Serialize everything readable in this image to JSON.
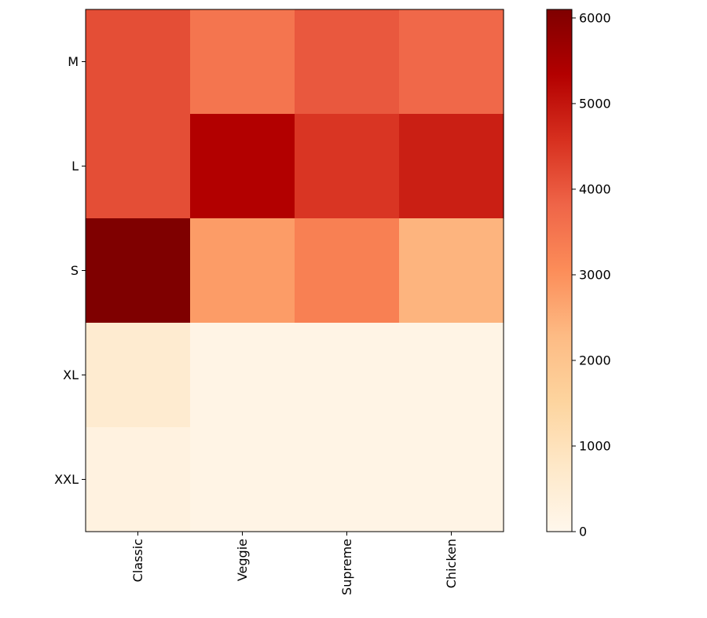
{
  "chart_data": {
    "type": "heatmap",
    "title": "",
    "xlabel": "",
    "ylabel": "",
    "x_categories": [
      "Classic",
      "Veggie",
      "Supreme",
      "Chicken"
    ],
    "y_categories": [
      "M",
      "L",
      "S",
      "XL",
      "XXL"
    ],
    "values": [
      [
        4150,
        3500,
        4000,
        3750
      ],
      [
        4150,
        5350,
        4500,
        4850
      ],
      [
        6100,
        2800,
        3300,
        2400
      ],
      [
        600,
        150,
        150,
        150
      ],
      [
        250,
        150,
        150,
        150
      ]
    ],
    "colormap": "OrRd",
    "colorbar": {
      "range": [
        0,
        6100
      ],
      "ticks": [
        0,
        1000,
        2000,
        3000,
        4000,
        5000,
        6000
      ],
      "tick_labels": [
        "0",
        "1000",
        "2000",
        "3000",
        "4000",
        "5000",
        "6000"
      ]
    },
    "grid": false
  }
}
